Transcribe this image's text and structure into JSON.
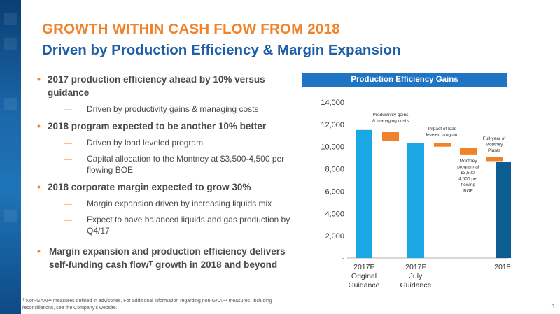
{
  "slide": {
    "title": "GROWTH WITHIN CASH FLOW FROM 2018",
    "subtitle": "Driven by Production Efficiency & Margin Expansion",
    "page_number": "3"
  },
  "bullets": [
    {
      "text": "2017 production efficiency ahead by 10% versus guidance",
      "subs": [
        "Driven by productivity gains & managing costs"
      ]
    },
    {
      "text": "2018 program expected to be another 10% better",
      "subs": [
        "Driven by load leveled program",
        "Capital allocation to the Montney at $3,500-4,500 per flowing BOE"
      ]
    },
    {
      "text": "2018 corporate margin expected to grow 30%",
      "subs": [
        "Margin expansion driven by increasing liquids mix",
        "Expect to have balanced liquids and gas production by Q4/17"
      ]
    },
    {
      "text": "Margin expansion and production efficiency delivers self-funding cash flowᵀ growth in 2018 and beyond",
      "subs": []
    }
  ],
  "footnote": "ᵀ Non-GAAP¹ measures defined in advisories. For additional information regarding non-GAAP¹ measures, including reconciliations, see the Company's website.",
  "chart_data": {
    "type": "bar",
    "title": "Production Efficiency Gains",
    "yticks": [
      "-",
      "2,000",
      "4,000",
      "6,000",
      "8,000",
      "10,000",
      "12,000",
      "14,000"
    ],
    "ylim": [
      0,
      14000
    ],
    "bars": [
      {
        "labels": [
          "2017F",
          "Original",
          "Guidance"
        ],
        "value": 11500,
        "color": "#1aa8e4"
      },
      {
        "labels": [
          "2017F",
          "July",
          "Guidance"
        ],
        "value": 10300,
        "color": "#1aa8e4"
      },
      {
        "labels": [
          "2018F"
        ],
        "value": 8600,
        "color": "#0c5d92"
      }
    ],
    "steps": [
      {
        "name": "Productivity gains & managing costs",
        "annotation": [
          "Productivity gains",
          "& managing costs"
        ],
        "from": 11300,
        "to": 10500,
        "color": "#f0822a"
      },
      {
        "name": "Impact of load leveled program",
        "annotation": [
          "Impact of load",
          "leveled program"
        ],
        "from": 10350,
        "to": 10000,
        "color": "#f0822a"
      },
      {
        "name": "Montney program at $3,500-4,500 per flowing BOE",
        "annotation": [
          "Montney",
          "program at",
          "$3,500-",
          "4,500 per",
          "flowing",
          "BOE"
        ],
        "from": 9900,
        "to": 9300,
        "color": "#f0822a"
      },
      {
        "name": "Full-year of Montney Plants",
        "annotation": [
          "Full-year of",
          "Montney",
          "Plants"
        ],
        "from": 9100,
        "to": 8700,
        "color": "#f0822a"
      }
    ]
  }
}
